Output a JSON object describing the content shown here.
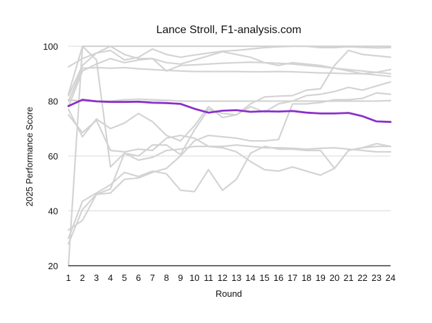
{
  "chart_data": {
    "type": "line",
    "title": "Lance Stroll, F1-analysis.com",
    "xlabel": "Round",
    "ylabel": "2025 Performance Score",
    "x": [
      1,
      2,
      3,
      4,
      5,
      6,
      7,
      8,
      9,
      10,
      11,
      12,
      13,
      14,
      15,
      16,
      17,
      18,
      19,
      20,
      21,
      22,
      23,
      24
    ],
    "ylim": [
      20,
      100
    ],
    "xlim": [
      1,
      24
    ],
    "yticks": [
      20,
      40,
      60,
      80,
      100
    ],
    "grid": true,
    "highlight_color": "#8B2FC9",
    "background_color": "#d3d3d3",
    "highlight": {
      "values": [
        78.2,
        80.5,
        79.9,
        79.7,
        79.7,
        79.8,
        79.4,
        79.3,
        79.0,
        77.2,
        75.8,
        76.5,
        76.7,
        76.1,
        76.3,
        76.2,
        76.4,
        75.8,
        75.5,
        75.5,
        75.7,
        74.5,
        72.6,
        72.4
      ]
    },
    "series": [
      {
        "values": [
          82.5,
          100,
          100,
          100,
          100,
          100,
          100,
          100,
          100,
          100,
          100,
          100,
          100,
          100,
          100,
          100,
          100,
          100,
          100,
          100,
          100,
          100,
          100,
          100
        ]
      },
      {
        "values": [
          92.5,
          95.5,
          97.5,
          98.5,
          95.0,
          96.0,
          99.0,
          97.0,
          96.0,
          96.8,
          97.5,
          98.2,
          98.5,
          99.0,
          99.5,
          99.8,
          100,
          100,
          99.5,
          99.5,
          99.8,
          99.6,
          99.4,
          99.5
        ]
      },
      {
        "values": [
          82.0,
          93.0,
          97.5,
          100,
          97.0,
          95.5,
          95.5,
          94.0,
          93.5,
          95.0,
          96.5,
          98.0,
          97.0,
          96.0,
          94.0,
          93.0,
          94.0,
          93.5,
          93.0,
          92.0,
          91.0,
          90.0,
          89.5,
          89.0
        ]
      },
      {
        "values": [
          78.0,
          91.0,
          93.5,
          95.5,
          94.0,
          95.0,
          95.5,
          91.0,
          93.0,
          93.2,
          93.5,
          93.8,
          94.0,
          94.2,
          94.0,
          93.8,
          93.5,
          93.0,
          92.5,
          92.0,
          91.5,
          91.0,
          90.5,
          90.0
        ]
      },
      {
        "values": [
          80.0,
          92.0,
          92.2,
          92.0,
          92.2,
          91.8,
          91.5,
          91.2,
          91.0,
          90.8,
          90.8,
          90.8,
          90.8,
          90.7,
          90.7,
          90.8,
          90.7,
          90.5,
          90.3,
          90.2,
          90.0,
          90.0,
          90.5,
          91.5
        ]
      },
      {
        "values": [
          80.5,
          80.0,
          80.0,
          80.0,
          80.5,
          80.7,
          80.5,
          80.3,
          80.0,
          80.0,
          80.0,
          80.0,
          80.0,
          80.0,
          80.0,
          80.0,
          80.0,
          80.0,
          80.0,
          80.0,
          80.0,
          80.0,
          80.0,
          80.2
        ]
      },
      {
        "values": [
          77.0,
          67.0,
          73.5,
          70.0,
          72.0,
          75.5,
          72.5,
          67.5,
          65.5,
          71.0,
          78.0,
          74.0,
          75.0,
          79.0,
          81.5,
          81.8,
          82.0,
          84.0,
          84.5,
          93.0,
          98.5,
          97.0,
          96.5,
          96.0
        ]
      },
      {
        "values": [
          75.0,
          68.5,
          73.0,
          62.0,
          61.5,
          62.5,
          62.0,
          66.5,
          67.5,
          66.5,
          63.5,
          63.5,
          64.0,
          63.5,
          63.0,
          63.0,
          62.8,
          62.5,
          62.8,
          63.0,
          62.5,
          62.0,
          61.5,
          61.5
        ]
      },
      {
        "values": [
          33.0,
          36.5,
          46.0,
          46.5,
          51.5,
          52.0,
          54.0,
          55.5,
          60.0,
          65.5,
          67.5,
          67.0,
          66.5,
          65.5,
          65.5,
          66.0,
          79.0,
          79.0,
          79.5,
          80.5,
          80.5,
          81.0,
          83.0,
          82.5
        ]
      },
      {
        "values": [
          30.0,
          43.5,
          46.5,
          49.5,
          54.0,
          52.5,
          54.5,
          53.5,
          47.5,
          47.0,
          55.0,
          47.5,
          51.5,
          61.0,
          63.5,
          62.5,
          62.5,
          62.0,
          62.0,
          55.5,
          62.0,
          63.0,
          63.5,
          63.5
        ]
      },
      {
        "values": [
          28.0,
          40.5,
          46.0,
          48.0,
          61.0,
          58.5,
          59.5,
          62.0,
          62.5,
          63.5,
          63.5,
          63.0,
          61.5,
          58.0,
          55.0,
          54.5,
          56.0,
          54.5,
          53.0,
          55.5,
          62.0,
          63.0,
          64.5,
          63.5
        ]
      },
      {
        "values": [
          20.0,
          100,
          95.0,
          56.0,
          61.0,
          60.0,
          64.0,
          64.0,
          60.5,
          69.5,
          77.0,
          75.5,
          75.0,
          78.0,
          76.0,
          79.0,
          80.0,
          82.0,
          82.5,
          83.5,
          85.0,
          84.0,
          85.5,
          87.0
        ]
      }
    ]
  }
}
